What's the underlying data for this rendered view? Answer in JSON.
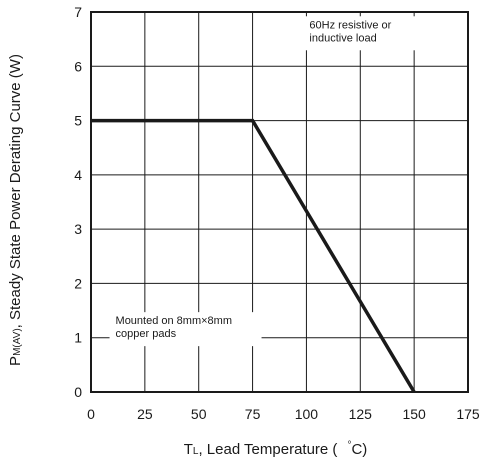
{
  "chart_data": {
    "type": "line",
    "title": "",
    "xlabel": {
      "symbol": "T",
      "subscript": "L",
      "text": ", Lead Temperature (",
      "degree": "°",
      "unit_end": "C)"
    },
    "ylabel": {
      "symbol": "P",
      "subscript": "M(AV)",
      "text": ", Steady State Power Derating Curve (W)"
    },
    "xlim": [
      0,
      175
    ],
    "ylim": [
      0,
      7
    ],
    "xticks": [
      0,
      25,
      50,
      75,
      100,
      125,
      150,
      175
    ],
    "yticks": [
      0,
      1,
      2,
      3,
      4,
      5,
      6,
      7
    ],
    "grid": true,
    "series": [
      {
        "x": [
          0,
          75,
          150
        ],
        "y": [
          5,
          5,
          0
        ]
      }
    ],
    "annotations": [
      {
        "id": "load",
        "lines": [
          "60Hz resistive or",
          "inductive load"
        ],
        "x": 100,
        "y": 6.7
      },
      {
        "id": "mount",
        "lines": [
          "Mounted on 8mm×8mm",
          "copper pads"
        ],
        "x": 10,
        "y": 1.25
      }
    ]
  }
}
